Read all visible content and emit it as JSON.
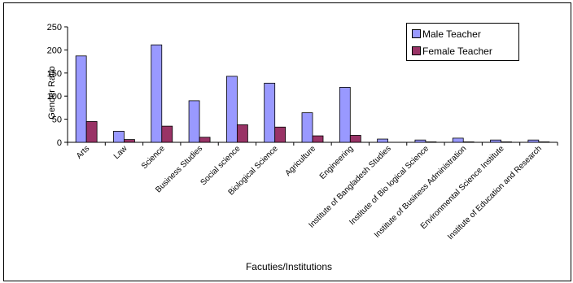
{
  "chart_data": {
    "type": "bar",
    "xlabel": "Facuties/Institutions",
    "ylabel": "Gender Ratio",
    "ylim": [
      0,
      250
    ],
    "yticks": [
      0,
      50,
      100,
      150,
      200,
      250
    ],
    "grid": false,
    "legend_position": "top-right",
    "categories": [
      "Arts",
      "Law",
      "Science",
      "Business Studies",
      "Social science",
      "Biological Science",
      "Agriculture",
      "Engineering",
      "Institute of Bangladesh Studies",
      "Institute of Bio logical Science",
      "Institute of Business Administration",
      "Environmental Science Institute",
      "Institute of Education and Research"
    ],
    "series": [
      {
        "name": "Male Teacher",
        "color": "#9999ff",
        "values": [
          187,
          24,
          211,
          90,
          143,
          128,
          64,
          119,
          7,
          5,
          9,
          5,
          5
        ]
      },
      {
        "name": "Female Teacher",
        "color": "#993366",
        "values": [
          45,
          6,
          35,
          11,
          38,
          33,
          14,
          15,
          0,
          1,
          1,
          1,
          1
        ]
      }
    ]
  }
}
